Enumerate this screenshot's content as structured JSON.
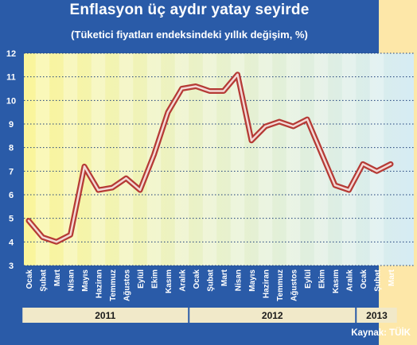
{
  "header": {
    "title": "Enflasyon üç aydır yatay seyirde",
    "subtitle": "(Tüketici fiyatları endeksindeki yıllık değişim, %)"
  },
  "footer": {
    "source": "Kaynak: TÜİK"
  },
  "colors": {
    "background": "#2a5ba8",
    "strip": "#fde7a8",
    "line_outer": "#b53a35",
    "line_inner": "#f3d9d6",
    "year_bar": "#f1e9c9"
  },
  "chart_data": {
    "type": "line",
    "title": "Enflasyon üç aydır yatay seyirde",
    "subtitle": "(Tüketici fiyatları endeksindeki yıllık değişim, %)",
    "categories": [
      "Ocak",
      "Şubat",
      "Mart",
      "Nisan",
      "Mayıs",
      "Haziran",
      "Temmuz",
      "Ağustos",
      "Eylül",
      "Ekim",
      "Kasım",
      "Aralık",
      "Ocak",
      "Şubat",
      "Mart",
      "Nisan",
      "Mayıs",
      "Haziran",
      "Temmuz",
      "Ağustos",
      "Eylül",
      "Ekim",
      "Kasım",
      "Aralık",
      "Ocak",
      "Şubat",
      "Mart"
    ],
    "years": [
      {
        "label": "2011",
        "months": 12
      },
      {
        "label": "2012",
        "months": 12
      },
      {
        "label": "2013",
        "months": 3
      }
    ],
    "values": [
      4.9,
      4.2,
      4.0,
      4.3,
      7.2,
      6.2,
      6.3,
      6.7,
      6.2,
      7.7,
      9.5,
      10.5,
      10.6,
      10.4,
      10.4,
      11.1,
      8.3,
      8.9,
      9.1,
      8.9,
      9.2,
      7.8,
      6.4,
      6.2,
      7.3,
      7.0,
      7.3
    ],
    "yticks": [
      3,
      4,
      5,
      6,
      7,
      8,
      9,
      10,
      11,
      12
    ],
    "ylim": [
      3,
      12
    ],
    "grid": true
  }
}
